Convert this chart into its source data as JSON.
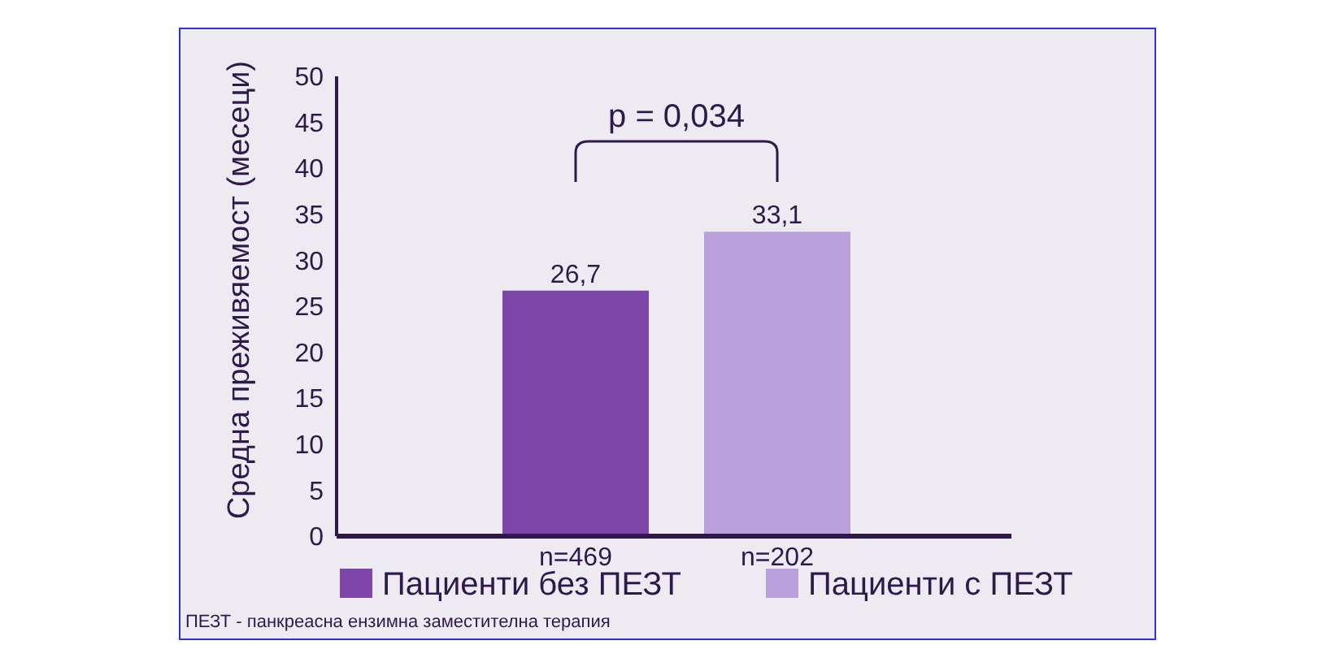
{
  "chart_data": {
    "type": "bar",
    "ylabel": "Средна преживяемост (месеци)",
    "categories": [
      "n=469",
      "n=202"
    ],
    "series": [
      {
        "name": "Пациенти без ПЕЗТ",
        "color": "#7f46aa",
        "values": [
          26.7,
          null
        ],
        "value_labels": [
          "26,7",
          null
        ]
      },
      {
        "name": "Пациенти с ПЕЗТ",
        "color": "#b99fdb",
        "values": [
          null,
          33.1
        ],
        "value_labels": [
          null,
          "33,1"
        ]
      }
    ],
    "ylim": [
      0,
      50
    ],
    "yticks": [
      0,
      5,
      10,
      15,
      20,
      25,
      30,
      35,
      40,
      45,
      50
    ],
    "grid": false,
    "legend": "bottom",
    "annotations": [
      "p = 0,034",
      "ПЕЗТ - панкреасна ензимна заместителна терапия"
    ]
  }
}
